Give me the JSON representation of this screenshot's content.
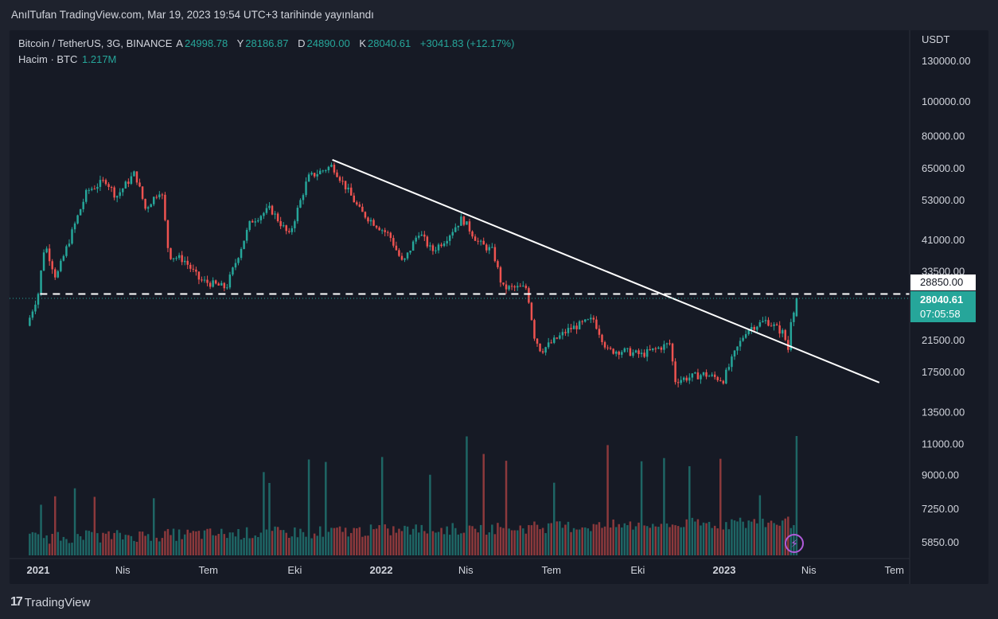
{
  "header": {
    "published_text": "AnılTufan TradingView.com, Mar 19, 2023 19:54 UTC+3 tarihinde yayınlandı"
  },
  "legend": {
    "symbol": "Bitcoin / TetherUS, 3G, BINANCE",
    "open_label": "A",
    "open": "24998.78",
    "high_label": "Y",
    "high": "28186.87",
    "low_label": "D",
    "low": "24890.00",
    "close_label": "K",
    "close": "28040.61",
    "change": "+3041.83 (+12.17%)",
    "volume_label": "Hacim · BTC",
    "volume_value": "1.217M"
  },
  "price_scale": {
    "currency": "USDT",
    "ticks": [
      "130000.00",
      "100000.00",
      "80000.00",
      "65000.00",
      "53000.00",
      "41000.00",
      "33500.00",
      "21500.00",
      "17500.00",
      "13500.00",
      "11000.00",
      "9000.00",
      "7250.00",
      "5850.00"
    ]
  },
  "time_axis": {
    "labels": [
      "2021",
      "Nis",
      "Tem",
      "Eki",
      "2022",
      "Nis",
      "Tem",
      "Eki",
      "2023",
      "Nis",
      "Tem"
    ],
    "bold": [
      "2021",
      "2022",
      "2023"
    ]
  },
  "tags": {
    "level_price": "28850.00",
    "last_price": "28040.61",
    "countdown": "07:05:58"
  },
  "footer": {
    "brand": "TradingView",
    "logo_mark": "17"
  },
  "icons": {
    "bolt": "lightning-icon"
  },
  "colors": {
    "up": "#26a69a",
    "down": "#ef5350",
    "background": "#161a25",
    "trendline": "#ffffff"
  },
  "chart_data": {
    "type": "candlestick",
    "title": "Bitcoin / TetherUS, 3G, BINANCE",
    "scale": "log",
    "ylim": [
      5850,
      130000
    ],
    "close_path": [
      [
        "2020-12-20",
        23500
      ],
      [
        "2021-01-01",
        29000
      ],
      [
        "2021-01-08",
        40000
      ],
      [
        "2021-01-20",
        32000
      ],
      [
        "2021-02-10",
        46000
      ],
      [
        "2021-02-22",
        56000
      ],
      [
        "2021-03-14",
        60000
      ],
      [
        "2021-03-25",
        54000
      ],
      [
        "2021-04-14",
        63000
      ],
      [
        "2021-04-25",
        50000
      ],
      [
        "2021-05-12",
        57000
      ],
      [
        "2021-05-20",
        37000
      ],
      [
        "2021-06-05",
        36000
      ],
      [
        "2021-06-22",
        31500
      ],
      [
        "2021-07-20",
        30000
      ],
      [
        "2021-08-15",
        46000
      ],
      [
        "2021-09-05",
        50000
      ],
      [
        "2021-09-25",
        42000
      ],
      [
        "2021-10-15",
        61000
      ],
      [
        "2021-11-10",
        66000
      ],
      [
        "2021-11-25",
        57000
      ],
      [
        "2021-12-10",
        49000
      ],
      [
        "2022-01-10",
        42000
      ],
      [
        "2022-01-24",
        35000
      ],
      [
        "2022-02-10",
        43000
      ],
      [
        "2022-02-24",
        38000
      ],
      [
        "2022-03-10",
        41000
      ],
      [
        "2022-03-28",
        47000
      ],
      [
        "2022-04-15",
        40000
      ],
      [
        "2022-04-30",
        38000
      ],
      [
        "2022-05-10",
        30000
      ],
      [
        "2022-06-05",
        30000
      ],
      [
        "2022-06-13",
        22000
      ],
      [
        "2022-06-20",
        20000
      ],
      [
        "2022-07-20",
        23000
      ],
      [
        "2022-08-15",
        24500
      ],
      [
        "2022-08-30",
        20000
      ],
      [
        "2022-09-15",
        20000
      ],
      [
        "2022-10-05",
        19500
      ],
      [
        "2022-11-05",
        21000
      ],
      [
        "2022-11-09",
        16500
      ],
      [
        "2022-12-10",
        17200
      ],
      [
        "2022-12-31",
        16600
      ],
      [
        "2023-01-13",
        19900
      ],
      [
        "2023-01-25",
        23000
      ],
      [
        "2023-02-15",
        24300
      ],
      [
        "2023-03-05",
        22400
      ],
      [
        "2023-03-10",
        20200
      ],
      [
        "2023-03-13",
        24500
      ],
      [
        "2023-03-19",
        28040.61
      ]
    ],
    "last_candle": {
      "open": 24998.78,
      "high": 28186.87,
      "low": 24890.0,
      "close": 28040.61,
      "change": 3041.83,
      "change_pct": 12.17
    },
    "volume": {
      "unit": "BTC",
      "last": "1.217M"
    },
    "annotations": [
      {
        "type": "trendline",
        "from": [
          "2021-11-10",
          68500
        ],
        "to": [
          "2023-06-15",
          16300
        ]
      },
      {
        "type": "horizontal_dashed",
        "price": 28850.0
      }
    ],
    "grid": false
  }
}
